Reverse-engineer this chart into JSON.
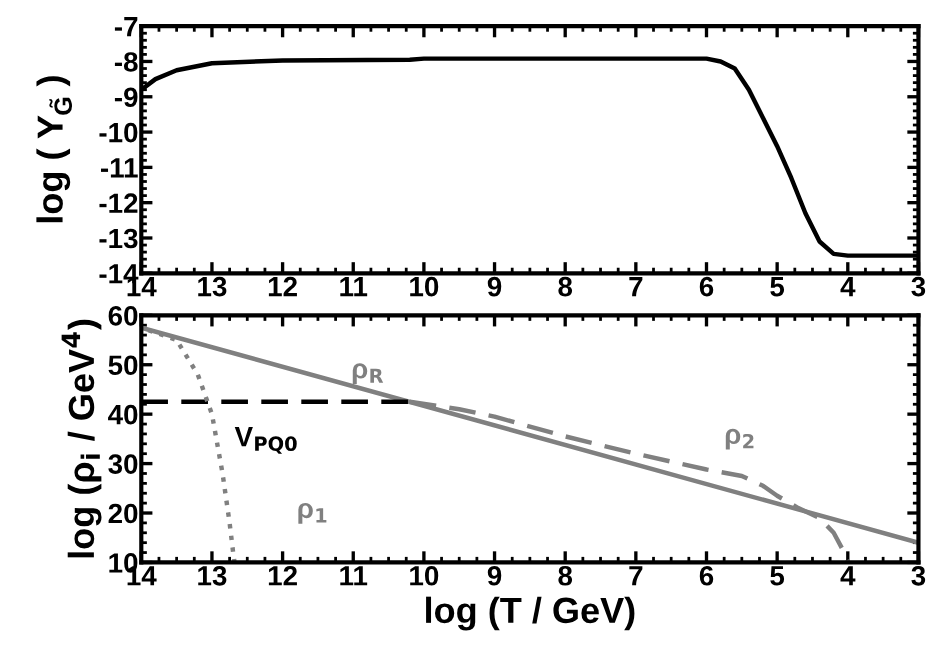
{
  "chart_data": [
    {
      "type": "line",
      "ylabel": "log ( Y$_{G̃}$ )",
      "xlim": [
        14,
        3
      ],
      "xticks": [
        14,
        13,
        12,
        11,
        10,
        9,
        8,
        7,
        6,
        5,
        4,
        3
      ],
      "ylim": [
        -14,
        -7
      ],
      "yticks": [
        -14,
        -13,
        -12,
        -11,
        -10,
        -9,
        -8,
        -7
      ],
      "grid": false,
      "legend": false,
      "line_style": "solid",
      "series": [
        {
          "color": "#000000",
          "x": [
            14,
            13.8,
            13.5,
            13,
            12,
            10.2,
            10,
            6,
            5.8,
            5.6,
            5.4,
            5.2,
            5,
            4.8,
            4.6,
            4.4,
            4.2,
            4,
            3
          ],
          "values": [
            -8.8,
            -8.5,
            -8.25,
            -8.05,
            -7.97,
            -7.95,
            -7.92,
            -7.92,
            -8.0,
            -8.2,
            -8.8,
            -9.6,
            -10.4,
            -11.3,
            -12.3,
            -13.1,
            -13.45,
            -13.5,
            -13.5
          ]
        }
      ]
    },
    {
      "type": "line",
      "xlabel": "log (T / GeV)",
      "ylabel": "log (ρ$_{i}$ / GeV$^{4}$)",
      "xlim": [
        14,
        3
      ],
      "xticks": [
        14,
        13,
        12,
        11,
        10,
        9,
        8,
        7,
        6,
        5,
        4,
        3
      ],
      "ylim": [
        10,
        60
      ],
      "yticks": [
        10,
        20,
        30,
        40,
        50,
        60
      ],
      "grid": false,
      "legend": false,
      "series": [
        {
          "name": "ρ$_{R}$",
          "color": "#808080",
          "line_style": "solid",
          "x": [
            14,
            3
          ],
          "values": [
            57.5,
            14
          ]
        },
        {
          "name": "V$_{PQ0}$",
          "color": "#000000",
          "line_style": "dashed",
          "x": [
            14,
            10.2
          ],
          "values": [
            42.5,
            42.5
          ]
        },
        {
          "name": "ρ$_{2}$",
          "color": "#808080",
          "line_style": "dashed",
          "x": [
            10.2,
            9.5,
            9,
            8,
            7,
            6,
            5.5,
            5.2,
            5,
            4.7,
            4.4,
            4.2,
            4.05,
            4
          ],
          "values": [
            42.5,
            41,
            39.5,
            35.5,
            32,
            28.8,
            27.5,
            25.5,
            23.5,
            21,
            19,
            16,
            12,
            10
          ]
        },
        {
          "name": "ρ$_{1}$",
          "color": "#808080",
          "line_style": "dotted",
          "x": [
            13.9,
            13.5,
            13.2,
            13,
            12.85,
            12.75,
            12.7,
            12.68
          ],
          "values": [
            57,
            55,
            48,
            40,
            28,
            18,
            12,
            10
          ]
        }
      ]
    }
  ]
}
